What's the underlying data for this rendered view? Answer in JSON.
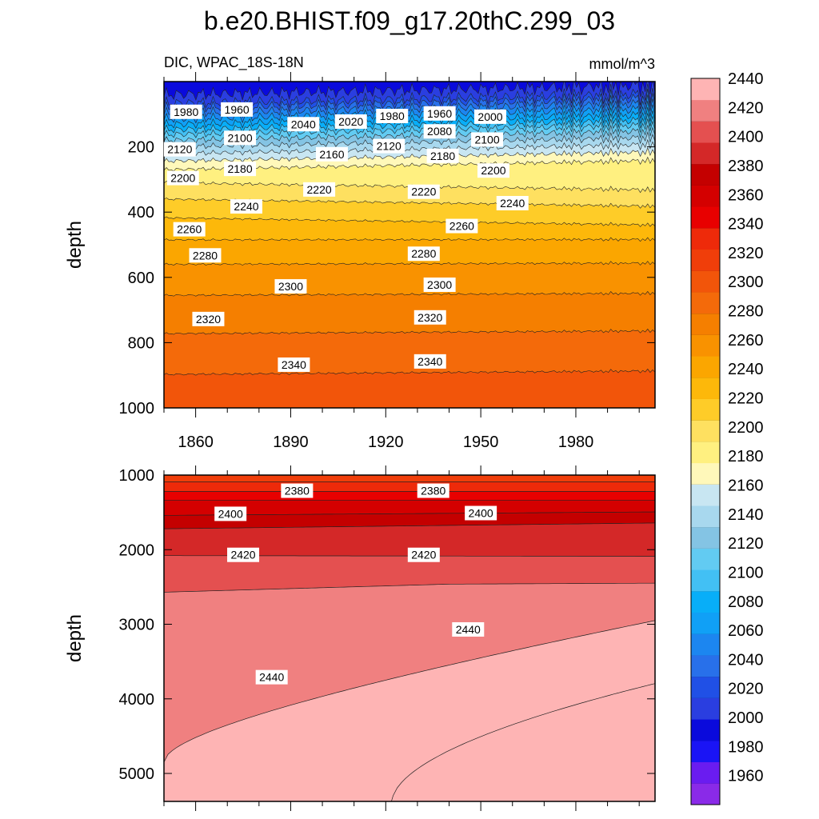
{
  "chart_data": {
    "type": "contour",
    "title": "b.e20.BHIST.f09_g17.20thC.299_03",
    "variable": "DIC, WPAC_18S-18N",
    "units": "mmol/m^3",
    "colorbar": {
      "levels": [
        1960,
        1980,
        2000,
        2020,
        2040,
        2060,
        2080,
        2100,
        2120,
        2140,
        2160,
        2180,
        2200,
        2220,
        2240,
        2260,
        2280,
        2300,
        2320,
        2340,
        2360,
        2380,
        2400,
        2420,
        2440
      ],
      "colors": [
        "#8a2ae8",
        "#6a1cf0",
        "#1a14f5",
        "#0a0adc",
        "#2a3ee0",
        "#2050e6",
        "#2870ea",
        "#1c86f0",
        "#10a0f6",
        "#08aef8",
        "#42c0f4",
        "#62cbf2",
        "#84c4e4",
        "#a8d8ee",
        "#c8e6f2",
        "#fff8ba",
        "#fff080",
        "#fee060",
        "#fecc28",
        "#fdb80a",
        "#fba600",
        "#f99200",
        "#f57f00",
        "#f46a0a",
        "#f2550a",
        "#f03e0a",
        "#ee2a0a",
        "#e80000",
        "#d40000",
        "#c40000",
        "#d42828",
        "#e45050",
        "#f08080",
        "#feb4b4"
      ]
    },
    "panels": [
      {
        "name": "upper",
        "ylabel": "depth",
        "ylim": [
          0,
          1000
        ],
        "yticks": [
          200,
          400,
          600,
          800,
          1000
        ],
        "xlim": [
          1850,
          2005
        ],
        "xticks": [
          1860,
          1890,
          1920,
          1950,
          1980
        ],
        "contour_labels": [
          {
            "text": "1980",
            "x": 1857,
            "d": 95
          },
          {
            "text": "1960",
            "x": 1873,
            "d": 88
          },
          {
            "text": "2040",
            "x": 1894,
            "d": 133
          },
          {
            "text": "2020",
            "x": 1909,
            "d": 125
          },
          {
            "text": "1980",
            "x": 1922,
            "d": 108
          },
          {
            "text": "1960",
            "x": 1937,
            "d": 100
          },
          {
            "text": "2000",
            "x": 1953,
            "d": 110
          },
          {
            "text": "2080",
            "x": 1937,
            "d": 155
          },
          {
            "text": "2100",
            "x": 1874,
            "d": 175
          },
          {
            "text": "2120",
            "x": 1855,
            "d": 210
          },
          {
            "text": "2160",
            "x": 1903,
            "d": 225
          },
          {
            "text": "2120",
            "x": 1921,
            "d": 200
          },
          {
            "text": "2180",
            "x": 1938,
            "d": 230
          },
          {
            "text": "2100",
            "x": 1952,
            "d": 180
          },
          {
            "text": "2180",
            "x": 1874,
            "d": 270
          },
          {
            "text": "2200",
            "x": 1856,
            "d": 298
          },
          {
            "text": "2200",
            "x": 1954,
            "d": 275
          },
          {
            "text": "2220",
            "x": 1899,
            "d": 333
          },
          {
            "text": "2220",
            "x": 1932,
            "d": 340
          },
          {
            "text": "2240",
            "x": 1876,
            "d": 385
          },
          {
            "text": "2240",
            "x": 1960,
            "d": 375
          },
          {
            "text": "2260",
            "x": 1858,
            "d": 455
          },
          {
            "text": "2260",
            "x": 1944,
            "d": 445
          },
          {
            "text": "2280",
            "x": 1863,
            "d": 535
          },
          {
            "text": "2280",
            "x": 1932,
            "d": 530
          },
          {
            "text": "2300",
            "x": 1890,
            "d": 630
          },
          {
            "text": "2300",
            "x": 1937,
            "d": 625
          },
          {
            "text": "2320",
            "x": 1864,
            "d": 730
          },
          {
            "text": "2320",
            "x": 1934,
            "d": 725
          },
          {
            "text": "2340",
            "x": 1891,
            "d": 870
          },
          {
            "text": "2340",
            "x": 1934,
            "d": 860
          }
        ]
      },
      {
        "name": "lower",
        "ylabel": "depth",
        "ylim": [
          1000,
          5375
        ],
        "yticks": [
          1000,
          2000,
          3000,
          4000,
          5000
        ],
        "xlim": [
          1850,
          2005
        ],
        "contour_labels": [
          {
            "text": "2380",
            "x": 1892,
            "d": 1220
          },
          {
            "text": "2380",
            "x": 1935,
            "d": 1220
          },
          {
            "text": "2400",
            "x": 1871,
            "d": 1530
          },
          {
            "text": "2400",
            "x": 1950,
            "d": 1520
          },
          {
            "text": "2420",
            "x": 1875,
            "d": 2080
          },
          {
            "text": "2420",
            "x": 1932,
            "d": 2080
          },
          {
            "text": "2440",
            "x": 1946,
            "d": 3080
          },
          {
            "text": "2440",
            "x": 1884,
            "d": 3720
          }
        ]
      }
    ]
  }
}
